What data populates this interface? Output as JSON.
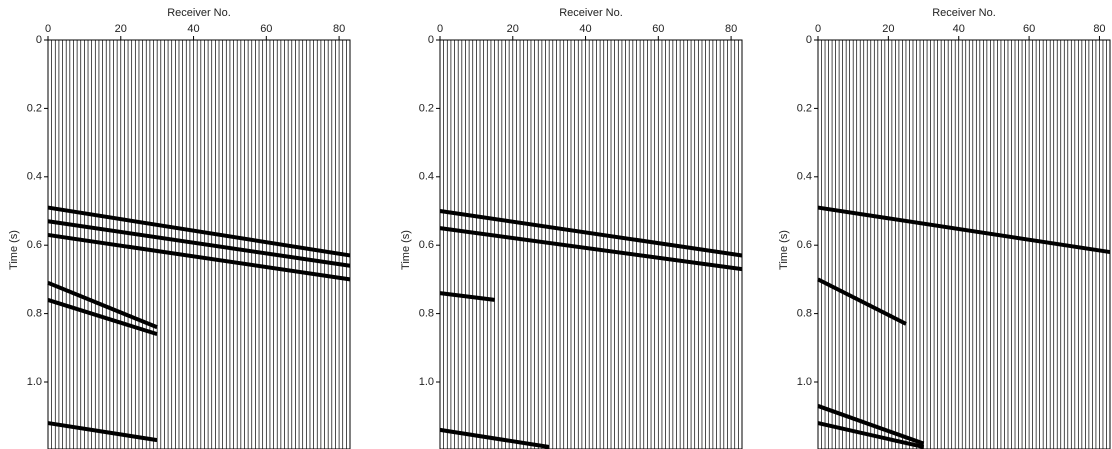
{
  "chart_data": [
    {
      "type": "seismic",
      "xlabel": "Receiver No.",
      "ylabel": "Time (s)",
      "xlim": [
        0,
        83
      ],
      "xticks": [
        0,
        20,
        40,
        60,
        80
      ],
      "ylim": [
        0,
        1.18
      ],
      "yticks": [
        0,
        0.2,
        0.4,
        0.6,
        0.8,
        {
          "value": 1,
          "label": "1.0"
        }
      ],
      "events": [
        {
          "x": [
            0,
            83
          ],
          "y": [
            0.49,
            0.63
          ]
        },
        {
          "x": [
            0,
            83
          ],
          "y": [
            0.53,
            0.66
          ]
        },
        {
          "x": [
            0,
            83
          ],
          "y": [
            0.57,
            0.7
          ]
        },
        {
          "x": [
            0,
            30
          ],
          "y": [
            0.71,
            0.84
          ]
        },
        {
          "x": [
            0,
            30
          ],
          "y": [
            0.76,
            0.86
          ]
        },
        {
          "x": [
            0,
            30
          ],
          "y": [
            1.12,
            1.17
          ]
        }
      ]
    },
    {
      "type": "seismic",
      "xlabel": "Receiver No.",
      "ylabel": "Time (s)",
      "xlim": [
        0,
        83
      ],
      "xticks": [
        0,
        20,
        40,
        60,
        80
      ],
      "ylim": [
        0,
        1.18
      ],
      "yticks": [
        0,
        0.2,
        0.4,
        0.6,
        0.8,
        {
          "value": 1,
          "label": "1.0"
        }
      ],
      "events": [
        {
          "x": [
            0,
            83
          ],
          "y": [
            0.5,
            0.63
          ]
        },
        {
          "x": [
            0,
            83
          ],
          "y": [
            0.55,
            0.67
          ]
        },
        {
          "x": [
            0,
            15
          ],
          "y": [
            0.74,
            0.76
          ]
        },
        {
          "x": [
            0,
            30
          ],
          "y": [
            1.14,
            1.19
          ]
        }
      ]
    },
    {
      "type": "seismic",
      "xlabel": "Receiver No.",
      "ylabel": "Time (s)",
      "xlim": [
        0,
        83
      ],
      "xticks": [
        0,
        20,
        40,
        60,
        80
      ],
      "ylim": [
        0,
        1.18
      ],
      "yticks": [
        0,
        0.2,
        0.4,
        0.6,
        0.8,
        {
          "value": 1,
          "label": "1.0"
        }
      ],
      "events": [
        {
          "x": [
            0,
            83
          ],
          "y": [
            0.49,
            0.62
          ]
        },
        {
          "x": [
            0,
            25
          ],
          "y": [
            0.7,
            0.83
          ]
        },
        {
          "x": [
            0,
            30
          ],
          "y": [
            1.07,
            1.18
          ]
        },
        {
          "x": [
            0,
            30
          ],
          "y": [
            1.12,
            1.19
          ]
        }
      ]
    }
  ]
}
